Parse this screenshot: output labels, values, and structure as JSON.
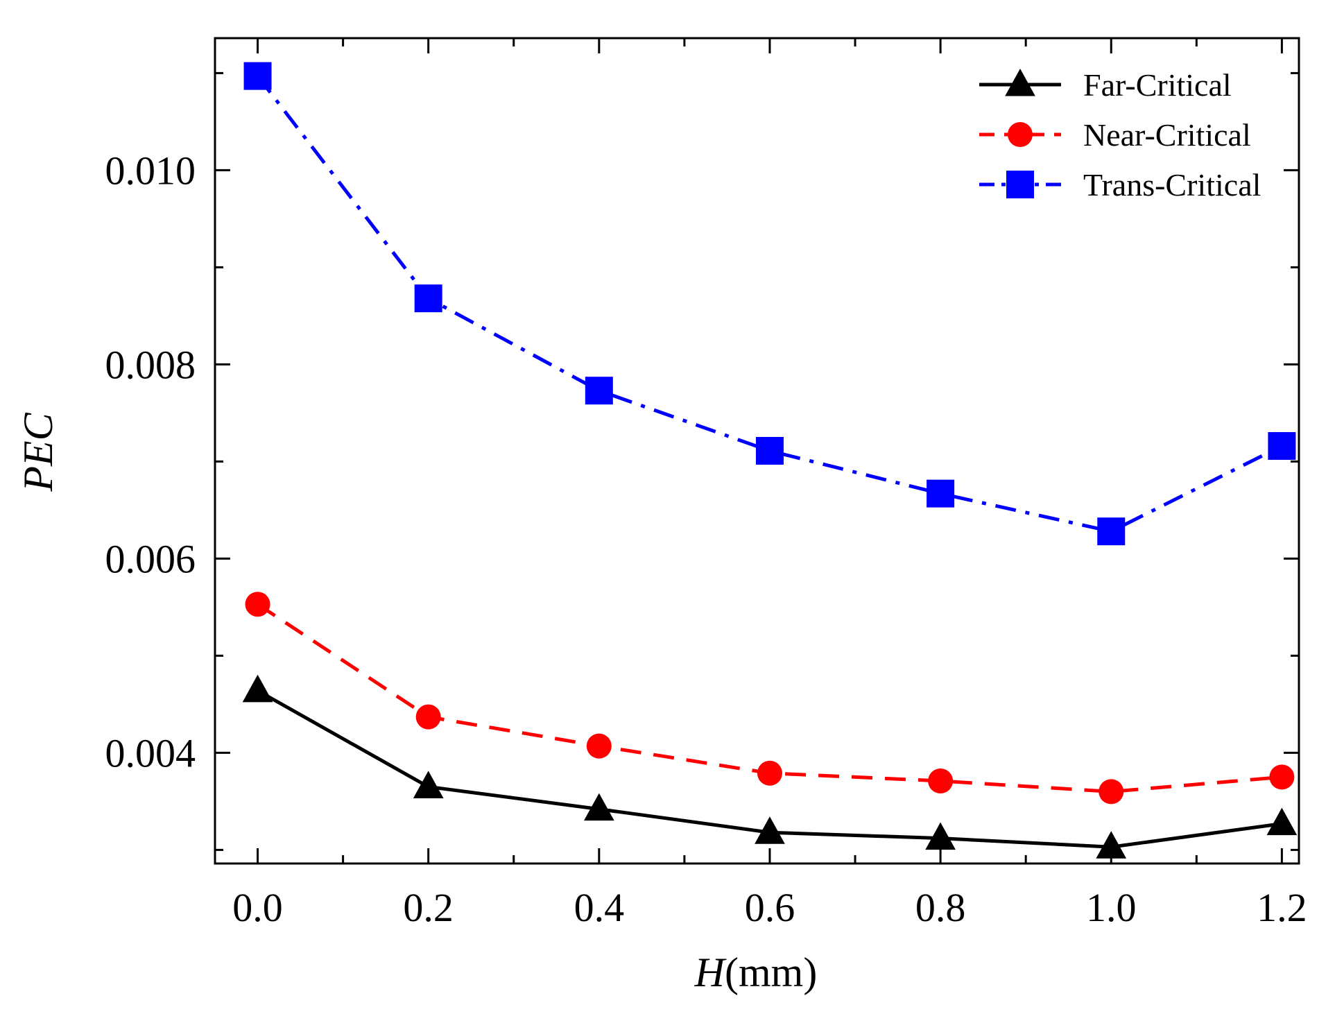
{
  "chart_data": {
    "type": "line",
    "title": "",
    "xlabel": {
      "italic": "H",
      "rest": "(mm)"
    },
    "ylabel": "PEC",
    "x": [
      0.0,
      0.2,
      0.4,
      0.6,
      0.8,
      1.0,
      1.2
    ],
    "x_tick_labels": [
      "0.0",
      "0.2",
      "0.4",
      "0.6",
      "0.8",
      "1.0",
      "1.2"
    ],
    "y_tick_labels": [
      "0.004",
      "0.006",
      "0.008",
      "0.010"
    ],
    "y_ticks": [
      0.004,
      0.006,
      0.008,
      0.01
    ],
    "xlim": [
      -0.05,
      1.22
    ],
    "ylim": [
      0.00286,
      0.01136
    ],
    "grid": false,
    "legend_position": "top-right",
    "series": [
      {
        "name": "Far-Critical",
        "color": "#000000",
        "marker": "triangle",
        "dash": "solid",
        "values": [
          0.00464,
          0.00365,
          0.00342,
          0.00318,
          0.00312,
          0.00303,
          0.00327
        ]
      },
      {
        "name": "Near-Critical",
        "color": "#ff0000",
        "marker": "circle",
        "dash": "dashed",
        "values": [
          0.00553,
          0.00437,
          0.00407,
          0.00379,
          0.00371,
          0.0036,
          0.00375
        ]
      },
      {
        "name": "Trans-Critical",
        "color": "#0000ff",
        "marker": "square",
        "dash": "dashdot",
        "values": [
          0.01097,
          0.00868,
          0.00773,
          0.00711,
          0.00667,
          0.00628,
          0.00716
        ]
      }
    ]
  }
}
